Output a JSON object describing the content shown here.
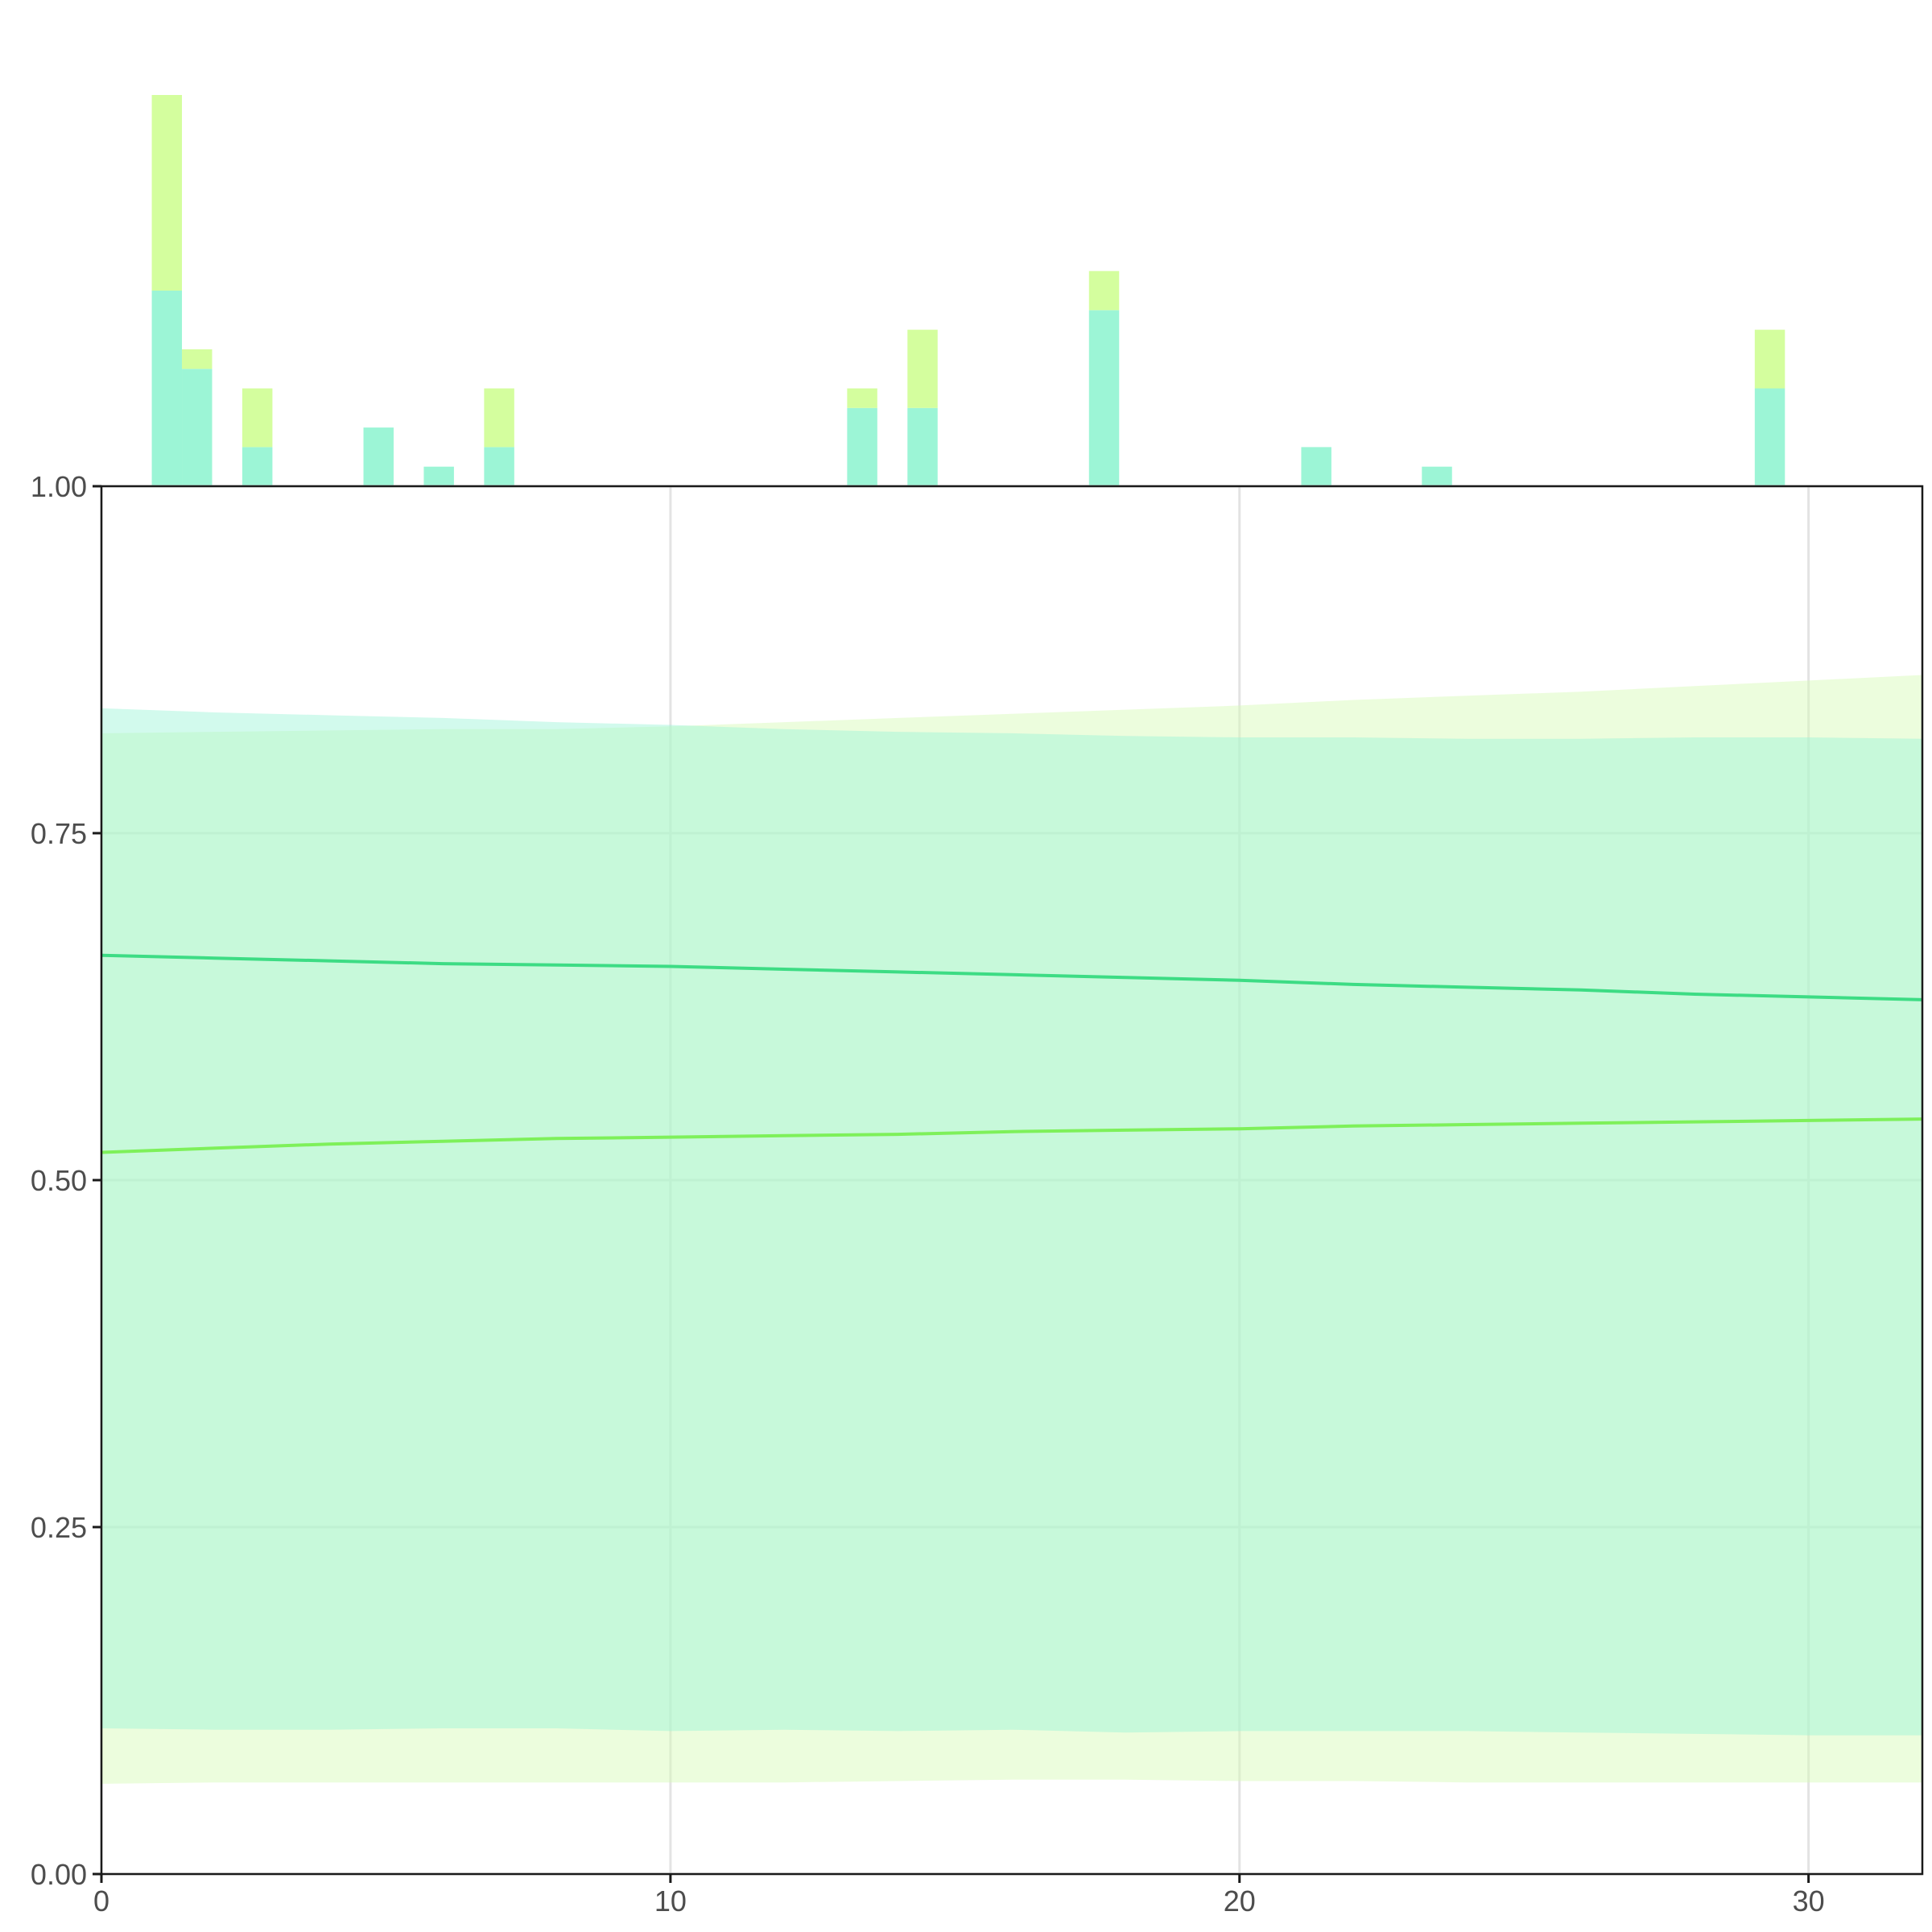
{
  "chart_data": {
    "type": "area",
    "title": "",
    "xlabel": "",
    "ylabel": "",
    "xlim": [
      0,
      32
    ],
    "ylim": [
      0,
      1
    ],
    "x_ticks": [
      0,
      10,
      20,
      30
    ],
    "x_tick_labels": [
      "0",
      "10",
      "20",
      "30"
    ],
    "y_ticks": [
      0,
      0.25,
      0.5,
      0.75,
      1
    ],
    "y_tick_labels": [
      "0.00",
      "0.25",
      "0.50",
      "0.75",
      "1.00"
    ],
    "grid": true,
    "legend": "none",
    "series": [
      {
        "color": "#3ddc84",
        "band_color": "#9cf5d6",
        "x": [
          0,
          2,
          4,
          6,
          8,
          10,
          12,
          14,
          16,
          18,
          20,
          22,
          24,
          26,
          28,
          30,
          32
        ],
        "mean": [
          0.662,
          0.66,
          0.658,
          0.656,
          0.655,
          0.654,
          0.652,
          0.65,
          0.648,
          0.646,
          0.644,
          0.641,
          0.639,
          0.637,
          0.634,
          0.632,
          0.63
        ],
        "lower": [
          0.105,
          0.104,
          0.104,
          0.105,
          0.105,
          0.103,
          0.104,
          0.103,
          0.104,
          0.102,
          0.103,
          0.103,
          0.103,
          0.102,
          0.101,
          0.1,
          0.1
        ],
        "upper": [
          0.84,
          0.837,
          0.835,
          0.833,
          0.83,
          0.828,
          0.825,
          0.823,
          0.822,
          0.82,
          0.819,
          0.819,
          0.818,
          0.818,
          0.819,
          0.819,
          0.818
        ]
      },
      {
        "color": "#7ef05a",
        "band_color": "#d4fbb4",
        "x": [
          0,
          2,
          4,
          6,
          8,
          10,
          12,
          14,
          16,
          18,
          20,
          22,
          24,
          26,
          28,
          30,
          32
        ],
        "mean": [
          0.52,
          0.523,
          0.526,
          0.528,
          0.53,
          0.531,
          0.532,
          0.533,
          0.535,
          0.536,
          0.537,
          0.539,
          0.54,
          0.541,
          0.542,
          0.543,
          0.544
        ],
        "lower": [
          0.065,
          0.066,
          0.066,
          0.066,
          0.066,
          0.066,
          0.066,
          0.067,
          0.068,
          0.068,
          0.067,
          0.067,
          0.066,
          0.066,
          0.066,
          0.066,
          0.066
        ],
        "upper": [
          0.822,
          0.823,
          0.824,
          0.825,
          0.825,
          0.827,
          0.83,
          0.833,
          0.836,
          0.839,
          0.842,
          0.846,
          0.849,
          0.852,
          0.856,
          0.86,
          0.864
        ]
      }
    ],
    "histogram": {
      "bin_width": 0.53,
      "unit": "count",
      "bars": [
        {
          "x": 1.15,
          "a": 5,
          "b": 5
        },
        {
          "x": 1.68,
          "a": 3,
          "b": 0.5
        },
        {
          "x": 2.74,
          "a": 1,
          "b": 1.5
        },
        {
          "x": 4.87,
          "a": 1.5,
          "b": 0
        },
        {
          "x": 5.93,
          "a": 0.5,
          "b": 0
        },
        {
          "x": 6.99,
          "a": 1,
          "b": 1.5
        },
        {
          "x": 13.37,
          "a": 2,
          "b": 0.5
        },
        {
          "x": 14.43,
          "a": 2,
          "b": 2
        },
        {
          "x": 17.62,
          "a": 4.5,
          "b": 1
        },
        {
          "x": 21.35,
          "a": 1,
          "b": 0
        },
        {
          "x": 23.47,
          "a": 0.5,
          "b": 0
        },
        {
          "x": 29.32,
          "a": 2.5,
          "b": 1.5
        }
      ],
      "max_count": 10,
      "color_a": "#9cf5d6",
      "color_b": "#d4fe9e"
    }
  }
}
